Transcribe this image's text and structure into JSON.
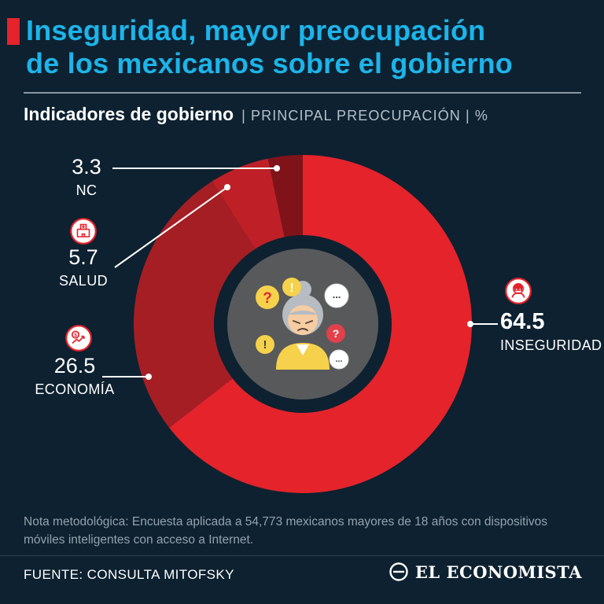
{
  "page": {
    "background": "#0d2130",
    "accent_red": "#e4232b",
    "accent_cyan": "#1db4e9"
  },
  "header": {
    "title_line1": "Inseguridad, mayor preocupación",
    "title_line2": "de los mexicanos sobre el gobierno",
    "section_title": "Indicadores de gobierno",
    "section_subtitle": "| PRINCIPAL PREOCUPACIÓN | %"
  },
  "chart_data": {
    "type": "pie",
    "variant": "donut",
    "title": "Indicadores de gobierno",
    "subtitle": "PRINCIPAL PREOCUPACIÓN",
    "unit": "%",
    "direction": "clockwise",
    "start_angle_deg": 0,
    "segments": [
      {
        "label": "INSEGURIDAD",
        "value": 64.5,
        "color": "#e4232b",
        "icon": "robber-icon"
      },
      {
        "label": "ECONOMÍA",
        "value": 26.5,
        "color": "#a51e24",
        "icon": "chart-dollar-icon"
      },
      {
        "label": "SALUD",
        "value": 5.7,
        "color": "#bf2027",
        "icon": "hospital-icon"
      },
      {
        "label": "NC",
        "value": 3.3,
        "color": "#7f1319",
        "icon": null
      }
    ],
    "center_illustration": "worried-person-with-question-and-exclamation-bubbles"
  },
  "footer": {
    "note": "Nota metodológica: Encuesta aplicada a 54,773 mexicanos mayores de 18 años con dispositivos móviles inteligentes con acceso a Internet.",
    "source": "FUENTE: CONSULTA MITOFSKY",
    "brand": "EL ECONOMISTA"
  }
}
